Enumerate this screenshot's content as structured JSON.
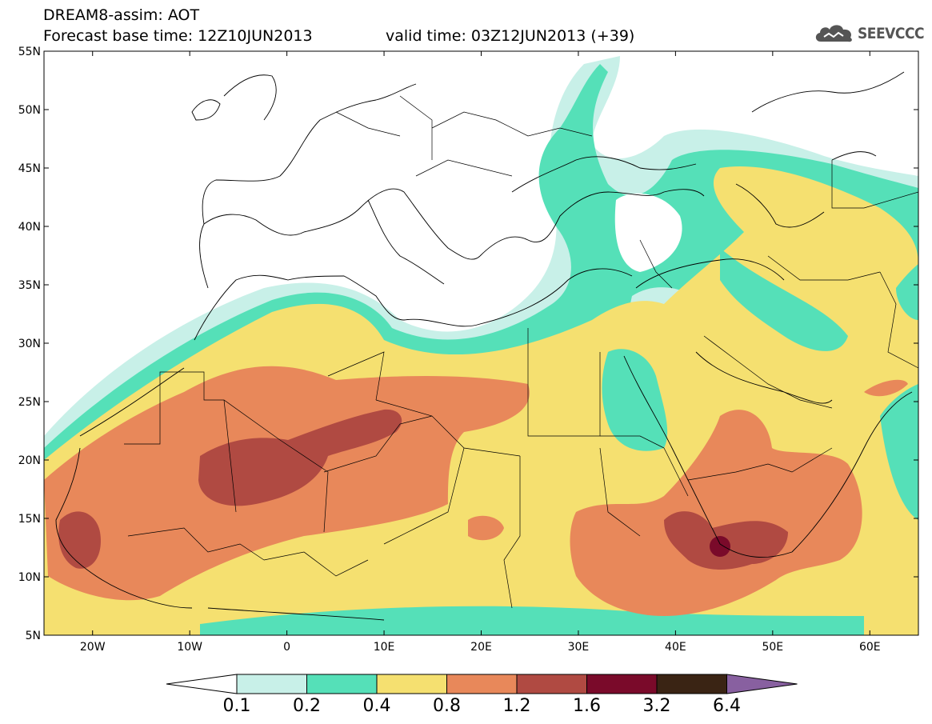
{
  "title": {
    "line1": "DREAM8-assim: AOT",
    "line2a": "Forecast base time: 12Z10JUN2013",
    "line2b": "valid time: 03Z12JUN2013 (+39)"
  },
  "logo": {
    "text": "SEEVCCC",
    "icon": "cloud-logo-icon"
  },
  "map": {
    "lat_ticks": [
      "55N",
      "50N",
      "45N",
      "40N",
      "35N",
      "30N",
      "25N",
      "20N",
      "15N",
      "10N",
      "5N"
    ],
    "lon_ticks": [
      "20W",
      "10W",
      "0",
      "10E",
      "20E",
      "30E",
      "40E",
      "50E",
      "60E"
    ],
    "extent": {
      "lon_min": -25,
      "lon_max": 65,
      "lat_min": 5,
      "lat_max": 55
    }
  },
  "legend": {
    "labels": [
      "0.1",
      "0.2",
      "0.4",
      "0.8",
      "1.2",
      "1.6",
      "3.2",
      "6.4"
    ],
    "colors": [
      "#c8f0e8",
      "#55e0b8",
      "#f5e070",
      "#e8885a",
      "#b04a42",
      "#7a0a2a",
      "#3a2414",
      "#8860a0"
    ],
    "low_color": "#ffffff"
  }
}
